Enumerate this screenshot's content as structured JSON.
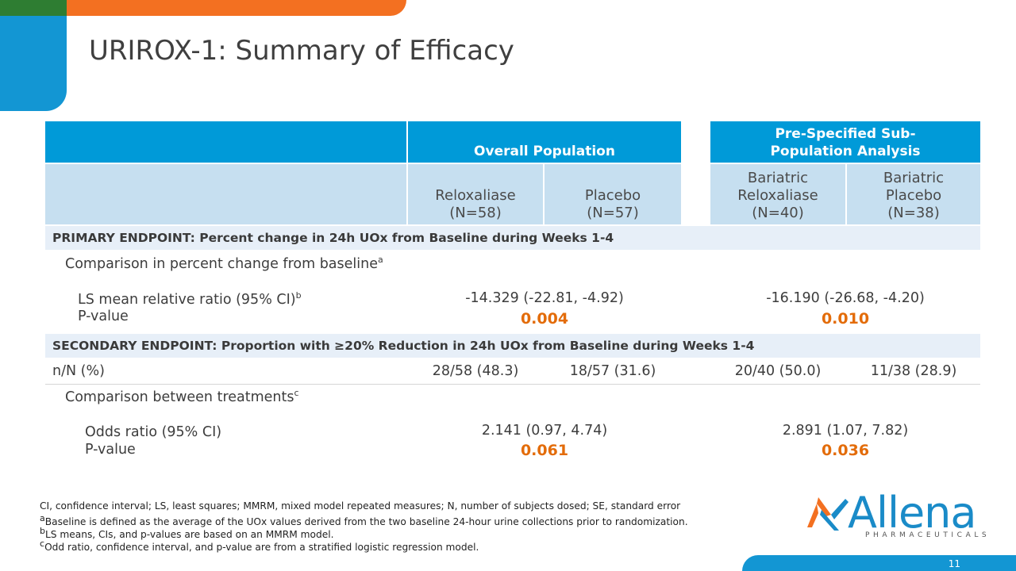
{
  "title": "URIROX-1: Summary of Efficacy",
  "header": {
    "overall_population": "Overall Population",
    "subpopulation": "Pre-Specified Sub-Population Analysis",
    "col_reloxaliase": [
      "Reloxaliase",
      "(N=58)"
    ],
    "col_placebo": [
      "Placebo",
      "(N=57)"
    ],
    "col_bar_reloxaliase": [
      "Bariatric",
      "Reloxaliase",
      "(N=40)"
    ],
    "col_bar_placebo": [
      "Bariatric",
      "Placebo",
      "(N=38)"
    ]
  },
  "primary": {
    "label": "PRIMARY ENDPOINT: Percent change in 24h UOx from Baseline during Weeks 1-4",
    "comparison_label": "Comparison in percent change from baseline",
    "comparison_sup": "a",
    "ls_label": "LS mean relative ratio  (95% CI)",
    "ls_sup": "b",
    "pvalue_label": "P-value",
    "overall_ls": "-14.329 (-22.81, -4.92)",
    "overall_p": "0.004",
    "sub_ls": "-16.190 (-26.68, -4.20)",
    "sub_p": "0.010"
  },
  "secondary": {
    "label": "SECONDARY ENDPOINT: Proportion with ≥20% Reduction in 24h UOx from Baseline during Weeks 1-4",
    "nn_label": "n/N (%)",
    "nn_values": [
      "28/58 (48.3)",
      "18/57 (31.6)",
      "20/40 (50.0)",
      "11/38 (28.9)"
    ],
    "comparison_label": "Comparison between treatments",
    "comparison_sup": "c",
    "or_label": "Odds ratio (95% CI)",
    "pvalue_label": "P-value",
    "overall_or": "2.141  (0.97, 4.74)",
    "overall_p": "0.061",
    "sub_or": "2.891 (1.07, 7.82)",
    "sub_p": "0.036"
  },
  "footnotes": [
    "CI, confidence interval; LS, least squares; MMRM, mixed model repeated measures; N, number of subjects dosed; SE, standard error",
    "Baseline is defined as the average of the UOx values derived from the two baseline 24-hour urine collections prior to randomization.",
    "LS means, CIs, and p-values are based on an MMRM model.",
    "Odd ratio, confidence interval, and p-value are from a stratified logistic regression model."
  ],
  "footnote_marks": [
    "a",
    "b",
    "c"
  ],
  "logo": {
    "name": "Allena",
    "sub": "PHARMACEUTICALS"
  },
  "page_number": "11",
  "colors": {
    "header_blue": "#009ad8",
    "light_blue": "#c6dff0",
    "orange": "#f37021",
    "green": "#2e7d32",
    "pvalue": "#e36c0a"
  }
}
